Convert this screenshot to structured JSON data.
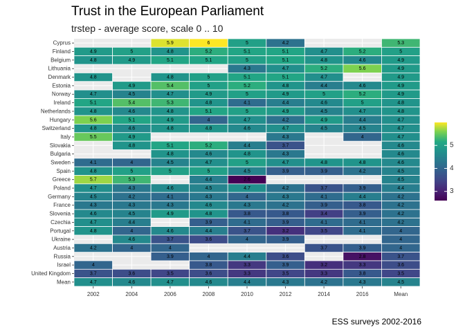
{
  "chart_data": {
    "type": "heatmap",
    "title": "Trust in the European Parliament",
    "subtitle": "trstep - average score, scale 0 .. 10",
    "caption": "ESS surveys 2002-2016",
    "x_categories": [
      "2002",
      "2004",
      "2006",
      "2008",
      "2010",
      "2012",
      "2014",
      "2016",
      "Mean"
    ],
    "y_categories": [
      "Cyprus",
      "Finland",
      "Belgium",
      "Lithuania",
      "Denmark",
      "Estonia",
      "Norway",
      "Ireland",
      "Netherlands",
      "Hungary",
      "Switzerland",
      "Italy",
      "Slovakia",
      "Bulgaria",
      "Sweden",
      "Spain",
      "Greece",
      "Poland",
      "Germany",
      "France",
      "Slovenia",
      "Czechia",
      "Portugal",
      "Ukraine",
      "Austria",
      "Russia",
      "Israel",
      "United Kingdom",
      "Mean"
    ],
    "values": [
      [
        null,
        null,
        5.9,
        6.0,
        5.0,
        4.2,
        null,
        null,
        5.3
      ],
      [
        4.9,
        5.0,
        4.8,
        5.2,
        5.1,
        5.1,
        4.7,
        5.2,
        5.0
      ],
      [
        4.8,
        4.9,
        5.1,
        5.1,
        5.0,
        5.1,
        4.8,
        4.6,
        4.9
      ],
      [
        null,
        null,
        null,
        null,
        4.3,
        4.7,
        5.2,
        5.6,
        4.9
      ],
      [
        4.8,
        null,
        4.8,
        5.0,
        5.1,
        5.1,
        4.7,
        null,
        4.9
      ],
      [
        null,
        4.9,
        5.4,
        5.0,
        5.2,
        4.8,
        4.4,
        4.6,
        4.9
      ],
      [
        4.7,
        4.5,
        4.7,
        4.9,
        5.0,
        4.9,
        5.0,
        5.2,
        4.9
      ],
      [
        5.1,
        5.4,
        5.3,
        4.8,
        4.1,
        4.4,
        4.6,
        5.0,
        4.8
      ],
      [
        4.8,
        4.6,
        4.8,
        5.1,
        5.0,
        4.9,
        4.5,
        4.7,
        4.8
      ],
      [
        5.6,
        5.1,
        4.9,
        4.0,
        4.7,
        4.2,
        4.9,
        4.4,
        4.7
      ],
      [
        4.8,
        4.6,
        4.8,
        4.8,
        4.6,
        4.7,
        4.5,
        4.5,
        4.7
      ],
      [
        5.5,
        4.9,
        null,
        null,
        null,
        4.3,
        null,
        4.0,
        4.7
      ],
      [
        null,
        4.8,
        5.1,
        5.2,
        4.4,
        3.7,
        null,
        null,
        4.6
      ],
      [
        null,
        null,
        4.8,
        4.6,
        4.8,
        4.3,
        null,
        null,
        4.6
      ],
      [
        4.1,
        4.0,
        4.5,
        4.7,
        5.0,
        4.7,
        4.8,
        4.8,
        4.6
      ],
      [
        4.8,
        5.0,
        5.0,
        5.0,
        4.5,
        3.9,
        3.9,
        4.2,
        4.5
      ],
      [
        5.7,
        5.3,
        null,
        4.4,
        2.6,
        null,
        null,
        null,
        4.5
      ],
      [
        4.7,
        4.3,
        4.6,
        4.5,
        4.7,
        4.2,
        3.7,
        3.9,
        4.4
      ],
      [
        4.5,
        4.2,
        4.1,
        4.3,
        4.0,
        4.3,
        4.1,
        4.4,
        4.2
      ],
      [
        4.3,
        4.3,
        4.3,
        4.6,
        4.3,
        4.2,
        3.9,
        3.8,
        4.2
      ],
      [
        4.6,
        4.5,
        4.9,
        4.8,
        3.8,
        3.8,
        3.4,
        3.9,
        4.2
      ],
      [
        4.7,
        4.4,
        null,
        3.9,
        4.1,
        3.9,
        4.1,
        4.1,
        4.2
      ],
      [
        4.8,
        4.0,
        4.6,
        4.4,
        3.7,
        3.2,
        3.5,
        4.1,
        4.0
      ],
      [
        null,
        4.6,
        3.7,
        3.6,
        4.0,
        3.9,
        null,
        null,
        4.0
      ],
      [
        4.2,
        4.0,
        4.0,
        null,
        null,
        null,
        3.7,
        3.9,
        4.0
      ],
      [
        null,
        null,
        3.9,
        4.0,
        4.4,
        3.6,
        null,
        2.8,
        3.7
      ],
      [
        4.0,
        null,
        null,
        3.8,
        3.3,
        3.9,
        3.2,
        3.3,
        3.6
      ],
      [
        3.7,
        3.6,
        3.5,
        3.6,
        3.3,
        3.5,
        3.3,
        3.8,
        3.5
      ],
      [
        4.7,
        4.6,
        4.7,
        4.6,
        4.4,
        4.3,
        4.2,
        4.3,
        4.5
      ]
    ],
    "legend": {
      "position": "right",
      "ticks": [
        3,
        4,
        5
      ],
      "range": [
        2.6,
        6.0
      ]
    },
    "grid": true,
    "na_color": "#ebebeb"
  }
}
